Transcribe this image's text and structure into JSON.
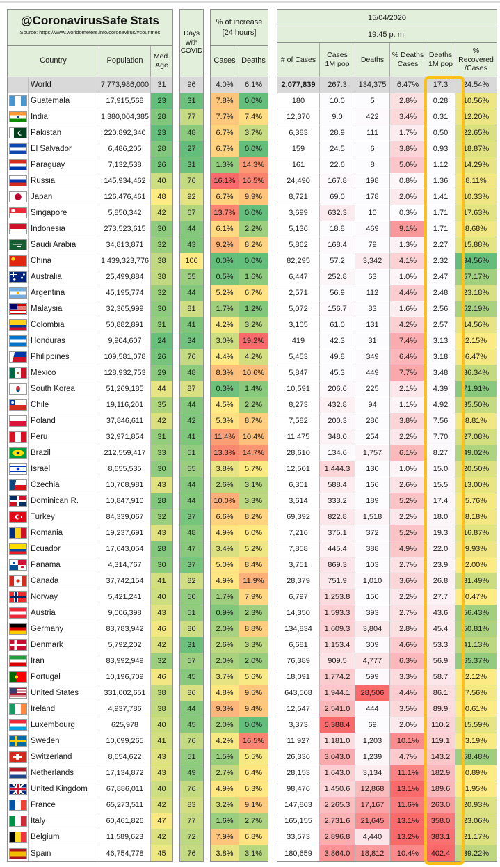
{
  "colors": {
    "scale_green": "#63BE7B",
    "scale_yellow": "#FFEB84",
    "scale_red": "#F8696B",
    "scale_white": "#FCFCFF",
    "world_row_gray": "#D9D9D9",
    "header_green": "#E2EFDA",
    "highlight_border": "#FCBE18"
  },
  "header": {
    "title": "@CoronavirusSafe Stats",
    "source": "Source: https://www.worldometers.info/coronavirus/#countries",
    "date": "15/04/2020",
    "time": "19:45 p. m.",
    "country": "Country",
    "population": "Population",
    "med_age": "Med. Age",
    "days": "Days with COVID",
    "increase_title": "% of increase [24 hours]",
    "inc_cases": "Cases",
    "inc_deaths": "Deaths",
    "num_cases": "# of Cases",
    "cases_1m_top": "Cases",
    "cases_1m_bot": "1M pop",
    "deaths": "Deaths",
    "pct_deaths_top": "% Deaths",
    "pct_deaths_bot": "Cases",
    "deaths_1m_top": "Deaths",
    "deaths_1m_bot": "1M pop",
    "recovered_l1": "%",
    "recovered_l2": "Recovered",
    "recovered_l3": "/Cases"
  },
  "chart_data": {
    "type": "table",
    "title": "@CoronavirusSafe Stats",
    "date": "15/04/2020",
    "time": "19:45 p. m.",
    "columns": [
      "Country",
      "Population",
      "Med. Age",
      "Days with COVID",
      "% increase Cases [24h]",
      "% increase Deaths [24h]",
      "# of Cases",
      "Cases 1M pop",
      "Deaths",
      "% Deaths/Cases",
      "Deaths 1M pop",
      "% Recovered/Cases"
    ],
    "rows": [
      {
        "name": "World",
        "flag": "world",
        "is_world": true,
        "pop": "7,773,986,000",
        "age": "31",
        "days": "96",
        "inc_cases": "4.0%",
        "inc_deaths": "6.1%",
        "cases": "2,077,839",
        "cases_1m": "267.3",
        "deaths": "134,375",
        "pct_deaths": "6.47%",
        "deaths_1m": "17.3",
        "recovered": "24.54%"
      },
      {
        "name": "Guatemala",
        "flag": "guatemala",
        "pop": "17,915,568",
        "age": "23",
        "days": "31",
        "inc_cases": "7.8%",
        "inc_deaths": "0.0%",
        "cases": "180",
        "cases_1m": "10.0",
        "deaths": "5",
        "pct_deaths": "2.8%",
        "deaths_1m": "0.28",
        "recovered": "10.56%"
      },
      {
        "name": "India",
        "flag": "india",
        "pop": "1,380,004,385",
        "age": "28",
        "days": "77",
        "inc_cases": "7.7%",
        "inc_deaths": "7.4%",
        "cases": "12,370",
        "cases_1m": "9.0",
        "deaths": "422",
        "pct_deaths": "3.4%",
        "deaths_1m": "0.31",
        "recovered": "12.20%"
      },
      {
        "name": "Pakistan",
        "flag": "pakistan",
        "pop": "220,892,340",
        "age": "23",
        "days": "48",
        "inc_cases": "6.7%",
        "inc_deaths": "3.7%",
        "cases": "6,383",
        "cases_1m": "28.9",
        "deaths": "111",
        "pct_deaths": "1.7%",
        "deaths_1m": "0.50",
        "recovered": "22.65%"
      },
      {
        "name": "El Salvador",
        "flag": "el_salvador",
        "pop": "6,486,205",
        "age": "28",
        "days": "27",
        "inc_cases": "6.7%",
        "inc_deaths": "0.0%",
        "cases": "159",
        "cases_1m": "24.5",
        "deaths": "6",
        "pct_deaths": "3.8%",
        "deaths_1m": "0.93",
        "recovered": "18.87%"
      },
      {
        "name": "Paraguay",
        "flag": "paraguay",
        "pop": "7,132,538",
        "age": "26",
        "days": "31",
        "inc_cases": "1.3%",
        "inc_deaths": "14.3%",
        "cases": "161",
        "cases_1m": "22.6",
        "deaths": "8",
        "pct_deaths": "5.0%",
        "deaths_1m": "1.12",
        "recovered": "14.29%"
      },
      {
        "name": "Russia",
        "flag": "russia",
        "pop": "145,934,462",
        "age": "40",
        "days": "76",
        "inc_cases": "16.1%",
        "inc_deaths": "16.5%",
        "cases": "24,490",
        "cases_1m": "167.8",
        "deaths": "198",
        "pct_deaths": "0.8%",
        "deaths_1m": "1.36",
        "recovered": "8.11%"
      },
      {
        "name": "Japan",
        "flag": "japan",
        "pop": "126,476,461",
        "age": "48",
        "days": "92",
        "inc_cases": "6.7%",
        "inc_deaths": "9.9%",
        "cases": "8,721",
        "cases_1m": "69.0",
        "deaths": "178",
        "pct_deaths": "2.0%",
        "deaths_1m": "1.41",
        "recovered": "10.33%"
      },
      {
        "name": "Singapore",
        "flag": "singapore",
        "pop": "5,850,342",
        "age": "42",
        "days": "67",
        "inc_cases": "13.7%",
        "inc_deaths": "0.0%",
        "cases": "3,699",
        "cases_1m": "632.3",
        "deaths": "10",
        "pct_deaths": "0.3%",
        "deaths_1m": "1.71",
        "recovered": "17.63%"
      },
      {
        "name": "Indonesia",
        "flag": "indonesia",
        "pop": "273,523,615",
        "age": "30",
        "days": "44",
        "inc_cases": "6.1%",
        "inc_deaths": "2.2%",
        "cases": "5,136",
        "cases_1m": "18.8",
        "deaths": "469",
        "pct_deaths": "9.1%",
        "deaths_1m": "1.71",
        "recovered": "8.68%"
      },
      {
        "name": "Saudi Arabia",
        "flag": "saudi_arabia",
        "pop": "34,813,871",
        "age": "32",
        "days": "43",
        "inc_cases": "9.2%",
        "inc_deaths": "8.2%",
        "cases": "5,862",
        "cases_1m": "168.4",
        "deaths": "79",
        "pct_deaths": "1.3%",
        "deaths_1m": "2.27",
        "recovered": "15.88%"
      },
      {
        "name": "China",
        "flag": "china",
        "pop": "1,439,323,776",
        "age": "38",
        "days": "106",
        "inc_cases": "0.0%",
        "inc_deaths": "0.0%",
        "cases": "82,295",
        "cases_1m": "57.2",
        "deaths": "3,342",
        "pct_deaths": "4.1%",
        "deaths_1m": "2.32",
        "recovered": "94.56%"
      },
      {
        "name": "Australia",
        "flag": "australia",
        "pop": "25,499,884",
        "age": "38",
        "days": "55",
        "inc_cases": "0.5%",
        "inc_deaths": "1.6%",
        "cases": "6,447",
        "cases_1m": "252.8",
        "deaths": "63",
        "pct_deaths": "1.0%",
        "deaths_1m": "2.47",
        "recovered": "57.17%"
      },
      {
        "name": "Argentina",
        "flag": "argentina",
        "pop": "45,195,774",
        "age": "32",
        "days": "44",
        "inc_cases": "5.2%",
        "inc_deaths": "6.7%",
        "cases": "2,571",
        "cases_1m": "56.9",
        "deaths": "112",
        "pct_deaths": "4.4%",
        "deaths_1m": "2.48",
        "recovered": "23.18%"
      },
      {
        "name": "Malaysia",
        "flag": "malaysia",
        "pop": "32,365,999",
        "age": "30",
        "days": "81",
        "inc_cases": "1.7%",
        "inc_deaths": "1.2%",
        "cases": "5,072",
        "cases_1m": "156.7",
        "deaths": "83",
        "pct_deaths": "1.6%",
        "deaths_1m": "2.56",
        "recovered": "52.19%"
      },
      {
        "name": "Colombia",
        "flag": "colombia",
        "pop": "50,882,891",
        "age": "31",
        "days": "41",
        "inc_cases": "4.2%",
        "inc_deaths": "3.2%",
        "cases": "3,105",
        "cases_1m": "61.0",
        "deaths": "131",
        "pct_deaths": "4.2%",
        "deaths_1m": "2.57",
        "recovered": "14.56%"
      },
      {
        "name": "Honduras",
        "flag": "honduras",
        "pop": "9,904,607",
        "age": "24",
        "days": "34",
        "inc_cases": "3.0%",
        "inc_deaths": "19.2%",
        "cases": "419",
        "cases_1m": "42.3",
        "deaths": "31",
        "pct_deaths": "7.4%",
        "deaths_1m": "3.13",
        "recovered": "2.15%"
      },
      {
        "name": "Philippines",
        "flag": "philippines",
        "pop": "109,581,078",
        "age": "26",
        "days": "76",
        "inc_cases": "4.4%",
        "inc_deaths": "4.2%",
        "cases": "5,453",
        "cases_1m": "49.8",
        "deaths": "349",
        "pct_deaths": "6.4%",
        "deaths_1m": "3.18",
        "recovered": "6.47%"
      },
      {
        "name": "Mexico",
        "flag": "mexico",
        "pop": "128,932,753",
        "age": "29",
        "days": "48",
        "inc_cases": "8.3%",
        "inc_deaths": "10.6%",
        "cases": "5,847",
        "cases_1m": "45.3",
        "deaths": "449",
        "pct_deaths": "7.7%",
        "deaths_1m": "3.48",
        "recovered": "36.34%"
      },
      {
        "name": "South Korea",
        "flag": "south_korea",
        "pop": "51,269,185",
        "age": "44",
        "days": "87",
        "inc_cases": "0.3%",
        "inc_deaths": "1.4%",
        "cases": "10,591",
        "cases_1m": "206.6",
        "deaths": "225",
        "pct_deaths": "2.1%",
        "deaths_1m": "4.39",
        "recovered": "71.91%"
      },
      {
        "name": "Chile",
        "flag": "chile",
        "pop": "19,116,201",
        "age": "35",
        "days": "44",
        "inc_cases": "4.5%",
        "inc_deaths": "2.2%",
        "cases": "8,273",
        "cases_1m": "432.8",
        "deaths": "94",
        "pct_deaths": "1.1%",
        "deaths_1m": "4.92",
        "recovered": "35.50%"
      },
      {
        "name": "Poland",
        "flag": "poland",
        "pop": "37,846,611",
        "age": "42",
        "days": "42",
        "inc_cases": "5.3%",
        "inc_deaths": "8.7%",
        "cases": "7,582",
        "cases_1m": "200.3",
        "deaths": "286",
        "pct_deaths": "3.8%",
        "deaths_1m": "7.56",
        "recovered": "8.81%"
      },
      {
        "name": "Peru",
        "flag": "peru",
        "pop": "32,971,854",
        "age": "31",
        "days": "41",
        "inc_cases": "11.4%",
        "inc_deaths": "10.4%",
        "cases": "11,475",
        "cases_1m": "348.0",
        "deaths": "254",
        "pct_deaths": "2.2%",
        "deaths_1m": "7.70",
        "recovered": "27.08%"
      },
      {
        "name": "Brazil",
        "flag": "brazil",
        "pop": "212,559,417",
        "age": "33",
        "days": "51",
        "inc_cases": "13.3%",
        "inc_deaths": "14.7%",
        "cases": "28,610",
        "cases_1m": "134.6",
        "deaths": "1,757",
        "pct_deaths": "6.1%",
        "deaths_1m": "8.27",
        "recovered": "49.02%"
      },
      {
        "name": "Israel",
        "flag": "israel",
        "pop": "8,655,535",
        "age": "30",
        "days": "55",
        "inc_cases": "3.8%",
        "inc_deaths": "5.7%",
        "cases": "12,501",
        "cases_1m": "1,444.3",
        "deaths": "130",
        "pct_deaths": "1.0%",
        "deaths_1m": "15.0",
        "recovered": "20.50%"
      },
      {
        "name": "Czechia",
        "flag": "czechia",
        "pop": "10,708,981",
        "age": "43",
        "days": "44",
        "inc_cases": "2.6%",
        "inc_deaths": "3.1%",
        "cases": "6,301",
        "cases_1m": "588.4",
        "deaths": "166",
        "pct_deaths": "2.6%",
        "deaths_1m": "15.5",
        "recovered": "13.00%"
      },
      {
        "name": "Dominican R.",
        "flag": "dominican_r",
        "pop": "10,847,910",
        "age": "28",
        "days": "44",
        "inc_cases": "10.0%",
        "inc_deaths": "3.3%",
        "cases": "3,614",
        "cases_1m": "333.2",
        "deaths": "189",
        "pct_deaths": "5.2%",
        "deaths_1m": "17.4",
        "recovered": "5.76%"
      },
      {
        "name": "Turkey",
        "flag": "turkey",
        "pop": "84,339,067",
        "age": "32",
        "days": "37",
        "inc_cases": "6.6%",
        "inc_deaths": "8.2%",
        "cases": "69,392",
        "cases_1m": "822.8",
        "deaths": "1,518",
        "pct_deaths": "2.2%",
        "deaths_1m": "18.0",
        "recovered": "8.18%"
      },
      {
        "name": "Romania",
        "flag": "romania",
        "pop": "19,237,691",
        "age": "43",
        "days": "48",
        "inc_cases": "4.9%",
        "inc_deaths": "6.0%",
        "cases": "7,216",
        "cases_1m": "375.1",
        "deaths": "372",
        "pct_deaths": "5.2%",
        "deaths_1m": "19.3",
        "recovered": "16.87%"
      },
      {
        "name": "Ecuador",
        "flag": "ecuador",
        "pop": "17,643,054",
        "age": "28",
        "days": "47",
        "inc_cases": "3.4%",
        "inc_deaths": "5.2%",
        "cases": "7,858",
        "cases_1m": "445.4",
        "deaths": "388",
        "pct_deaths": "4.9%",
        "deaths_1m": "22.0",
        "recovered": "9.93%"
      },
      {
        "name": "Panama",
        "flag": "panama",
        "pop": "4,314,767",
        "age": "30",
        "days": "37",
        "inc_cases": "5.0%",
        "inc_deaths": "8.4%",
        "cases": "3,751",
        "cases_1m": "869.3",
        "deaths": "103",
        "pct_deaths": "2.7%",
        "deaths_1m": "23.9",
        "recovered": "2.00%"
      },
      {
        "name": "Canada",
        "flag": "canada",
        "pop": "37,742,154",
        "age": "41",
        "days": "82",
        "inc_cases": "4.9%",
        "inc_deaths": "11.9%",
        "cases": "28,379",
        "cases_1m": "751.9",
        "deaths": "1,010",
        "pct_deaths": "3.6%",
        "deaths_1m": "26.8",
        "recovered": "31.49%"
      },
      {
        "name": "Norway",
        "flag": "norway",
        "pop": "5,421,241",
        "age": "40",
        "days": "50",
        "inc_cases": "1.7%",
        "inc_deaths": "7.9%",
        "cases": "6,797",
        "cases_1m": "1,253.8",
        "deaths": "150",
        "pct_deaths": "2.2%",
        "deaths_1m": "27.7",
        "recovered": "0.47%"
      },
      {
        "name": "Austria",
        "flag": "austria",
        "pop": "9,006,398",
        "age": "43",
        "days": "51",
        "inc_cases": "0.9%",
        "inc_deaths": "2.3%",
        "cases": "14,350",
        "cases_1m": "1,593.3",
        "deaths": "393",
        "pct_deaths": "2.7%",
        "deaths_1m": "43.6",
        "recovered": "56.43%"
      },
      {
        "name": "Germany",
        "flag": "germany",
        "pop": "83,783,942",
        "age": "46",
        "days": "80",
        "inc_cases": "2.0%",
        "inc_deaths": "8.8%",
        "cases": "134,834",
        "cases_1m": "1,609.3",
        "deaths": "3,804",
        "pct_deaths": "2.8%",
        "deaths_1m": "45.4",
        "recovered": "50.81%"
      },
      {
        "name": "Denmark",
        "flag": "denmark",
        "pop": "5,792,202",
        "age": "42",
        "days": "31",
        "inc_cases": "2.6%",
        "inc_deaths": "3.3%",
        "cases": "6,681",
        "cases_1m": "1,153.4",
        "deaths": "309",
        "pct_deaths": "4.6%",
        "deaths_1m": "53.3",
        "recovered": "41.13%"
      },
      {
        "name": "Iran",
        "flag": "iran",
        "pop": "83,992,949",
        "age": "32",
        "days": "57",
        "inc_cases": "2.0%",
        "inc_deaths": "2.0%",
        "cases": "76,389",
        "cases_1m": "909.5",
        "deaths": "4,777",
        "pct_deaths": "6.3%",
        "deaths_1m": "56.9",
        "recovered": "65.37%"
      },
      {
        "name": "Portugal",
        "flag": "portugal",
        "pop": "10,196,709",
        "age": "46",
        "days": "45",
        "inc_cases": "3.7%",
        "inc_deaths": "5.6%",
        "cases": "18,091",
        "cases_1m": "1,774.2",
        "deaths": "599",
        "pct_deaths": "3.3%",
        "deaths_1m": "58.7",
        "recovered": "2.12%"
      },
      {
        "name": "United States",
        "flag": "united_states",
        "pop": "331,002,651",
        "age": "38",
        "days": "86",
        "inc_cases": "4.8%",
        "inc_deaths": "9.5%",
        "cases": "643,508",
        "cases_1m": "1,944.1",
        "deaths": "28,506",
        "pct_deaths": "4.4%",
        "deaths_1m": "86.1",
        "recovered": "7.56%"
      },
      {
        "name": "Ireland",
        "flag": "ireland",
        "pop": "4,937,786",
        "age": "38",
        "days": "44",
        "inc_cases": "9.3%",
        "inc_deaths": "9.4%",
        "cases": "12,547",
        "cases_1m": "2,541.0",
        "deaths": "444",
        "pct_deaths": "3.5%",
        "deaths_1m": "89.9",
        "recovered": "0.61%"
      },
      {
        "name": "Luxembourg",
        "flag": "luxembourg",
        "pop": "625,978",
        "age": "40",
        "days": "45",
        "inc_cases": "2.0%",
        "inc_deaths": "0.0%",
        "cases": "3,373",
        "cases_1m": "5,388.4",
        "deaths": "69",
        "pct_deaths": "2.0%",
        "deaths_1m": "110.2",
        "recovered": "15.59%"
      },
      {
        "name": "Sweden",
        "flag": "sweden",
        "pop": "10,099,265",
        "age": "41",
        "days": "76",
        "inc_cases": "4.2%",
        "inc_deaths": "16.5%",
        "cases": "11,927",
        "cases_1m": "1,181.0",
        "deaths": "1,203",
        "pct_deaths": "10.1%",
        "deaths_1m": "119.1",
        "recovered": "3.19%"
      },
      {
        "name": "Switzerland",
        "flag": "switzerland",
        "pop": "8,654,622",
        "age": "43",
        "days": "51",
        "inc_cases": "1.5%",
        "inc_deaths": "5.5%",
        "cases": "26,336",
        "cases_1m": "3,043.0",
        "deaths": "1,239",
        "pct_deaths": "4.7%",
        "deaths_1m": "143.2",
        "recovered": "58.48%"
      },
      {
        "name": "Netherlands",
        "flag": "netherlands",
        "pop": "17,134,872",
        "age": "43",
        "days": "49",
        "inc_cases": "2.7%",
        "inc_deaths": "6.4%",
        "cases": "28,153",
        "cases_1m": "1,643.0",
        "deaths": "3,134",
        "pct_deaths": "11.1%",
        "deaths_1m": "182.9",
        "recovered": "0.89%"
      },
      {
        "name": "United Kingdom",
        "flag": "united_kingdom",
        "pop": "67,886,011",
        "age": "40",
        "days": "76",
        "inc_cases": "4.9%",
        "inc_deaths": "6.3%",
        "cases": "98,476",
        "cases_1m": "1,450.6",
        "deaths": "12,868",
        "pct_deaths": "13.1%",
        "deaths_1m": "189.6",
        "recovered": "1.95%"
      },
      {
        "name": "France",
        "flag": "france",
        "pop": "65,273,511",
        "age": "42",
        "days": "83",
        "inc_cases": "3.2%",
        "inc_deaths": "9.1%",
        "cases": "147,863",
        "cases_1m": "2,265.3",
        "deaths": "17,167",
        "pct_deaths": "11.6%",
        "deaths_1m": "263.0",
        "recovered": "20.93%"
      },
      {
        "name": "Italy",
        "flag": "italy",
        "pop": "60,461,826",
        "age": "47",
        "days": "77",
        "inc_cases": "1.6%",
        "inc_deaths": "2.7%",
        "cases": "165,155",
        "cases_1m": "2,731.6",
        "deaths": "21,645",
        "pct_deaths": "13.1%",
        "deaths_1m": "358.0",
        "recovered": "23.06%"
      },
      {
        "name": "Belgium",
        "flag": "belgium",
        "pop": "11,589,623",
        "age": "42",
        "days": "72",
        "inc_cases": "7.9%",
        "inc_deaths": "6.8%",
        "cases": "33,573",
        "cases_1m": "2,896.8",
        "deaths": "4,440",
        "pct_deaths": "13.2%",
        "deaths_1m": "383.1",
        "recovered": "21.17%"
      },
      {
        "name": "Spain",
        "flag": "spain",
        "pop": "46,754,778",
        "age": "45",
        "days": "76",
        "inc_cases": "3.8%",
        "inc_deaths": "3.1%",
        "cases": "180,659",
        "cases_1m": "3,864.0",
        "deaths": "18,812",
        "pct_deaths": "10.4%",
        "deaths_1m": "402.4",
        "recovered": "39.22%"
      }
    ]
  }
}
